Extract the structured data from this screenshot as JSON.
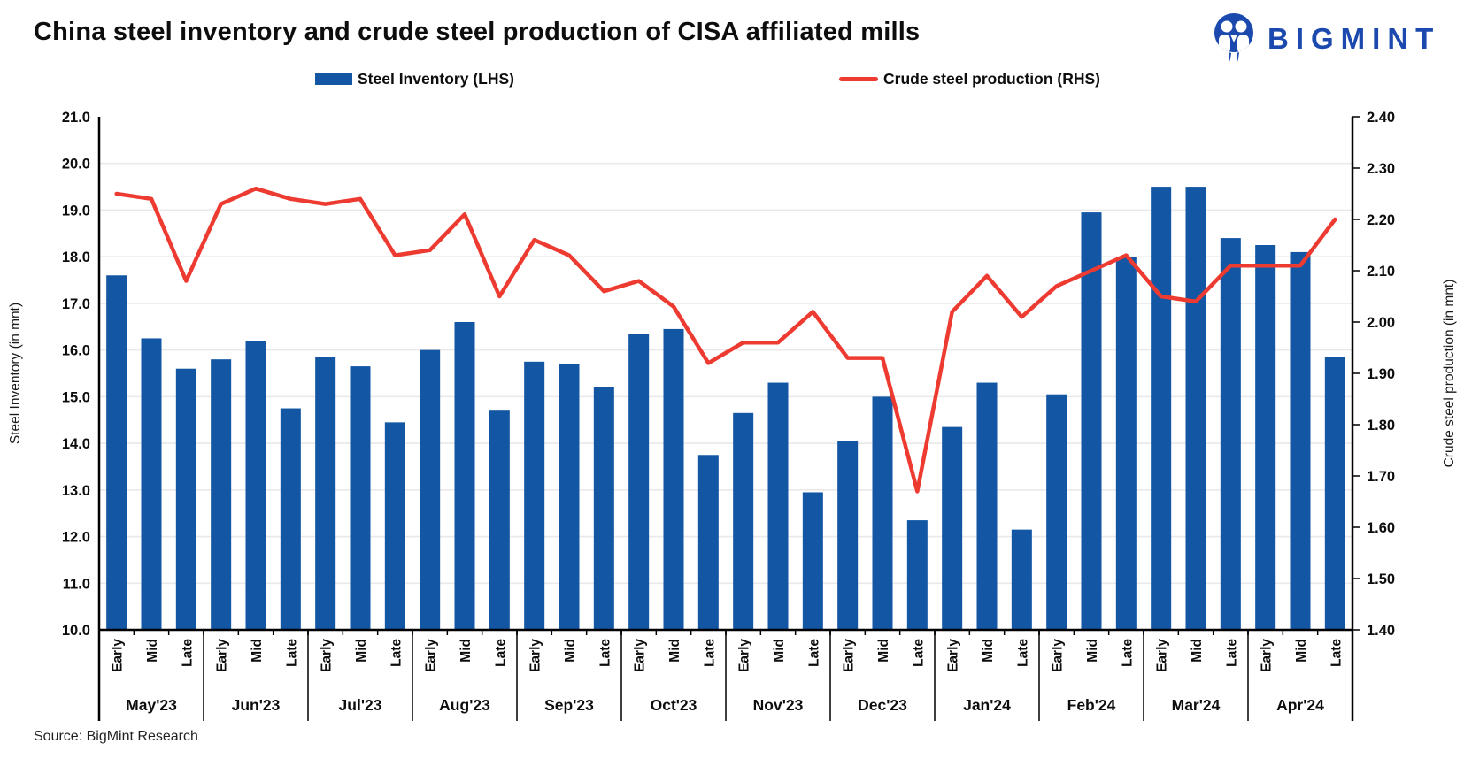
{
  "title": "China steel inventory and crude steel production of CISA affiliated mills",
  "logo": {
    "text": "BIGMINT",
    "color": "#1b49ae"
  },
  "legend": {
    "inventory_label": "Steel Inventory (LHS)",
    "production_label": "Crude steel production (RHS)"
  },
  "source": "Source: BigMint Research",
  "colors": {
    "bar": "#1256a4",
    "line": "#ee3b31",
    "grid": "#eae8e8",
    "axis": "#000000"
  },
  "chart_data": {
    "type": "bar+line",
    "title": "China steel inventory and crude steel production of CISA affiliated mills",
    "grid": true,
    "legend_position": "top",
    "categories_months": [
      "May'23",
      "Jun'23",
      "Jul'23",
      "Aug'23",
      "Sep'23",
      "Oct'23",
      "Nov'23",
      "Dec'23",
      "Jan'24",
      "Feb'24",
      "Mar'24",
      "Apr'24"
    ],
    "periods_per_month": [
      "Early",
      "Mid",
      "Late"
    ],
    "left_axis": {
      "label": "Steel Inventory (in mnt)",
      "min": 10.0,
      "max": 21.0,
      "step": 1.0,
      "tick_values": [
        21,
        20,
        19,
        18,
        17,
        16,
        15,
        14,
        13,
        12,
        11,
        10
      ],
      "tick_labels": [
        "21.0",
        "20.0",
        "19.0",
        "18.0",
        "17.0",
        "16.0",
        "15.0",
        "14.0",
        "13.0",
        "12.0",
        "11.0",
        "10.0"
      ]
    },
    "right_axis": {
      "label": "Crude steel production (in mnt)",
      "min": 1.4,
      "max": 2.4,
      "step": 0.1,
      "tick_values": [
        2.4,
        2.3,
        2.2,
        2.1,
        2.0,
        1.9,
        1.8,
        1.7,
        1.6,
        1.5,
        1.4
      ],
      "tick_labels": [
        "2.40",
        "2.30",
        "2.20",
        "2.10",
        "2.00",
        "1.90",
        "1.80",
        "1.70",
        "1.60",
        "1.50",
        "1.40"
      ]
    },
    "series": [
      {
        "name": "Steel Inventory (LHS)",
        "type": "bar",
        "axis": "left",
        "color": "#1256a4",
        "values": [
          17.6,
          16.25,
          15.6,
          15.8,
          16.2,
          14.75,
          15.85,
          15.65,
          14.45,
          16.0,
          16.6,
          14.7,
          15.75,
          15.7,
          15.2,
          16.35,
          16.45,
          13.75,
          14.65,
          15.3,
          12.95,
          14.05,
          15.0,
          12.35,
          14.35,
          15.3,
          12.15,
          15.05,
          18.95,
          18.0,
          19.5,
          19.5,
          18.4,
          18.25,
          18.1,
          15.85
        ]
      },
      {
        "name": "Crude steel production (RHS)",
        "type": "line",
        "axis": "right",
        "color": "#ee3b31",
        "values": [
          2.25,
          2.24,
          2.08,
          2.23,
          2.26,
          2.24,
          2.23,
          2.24,
          2.13,
          2.14,
          2.21,
          2.05,
          2.16,
          2.13,
          2.06,
          2.08,
          2.03,
          1.92,
          1.96,
          1.96,
          2.02,
          1.93,
          1.93,
          1.67,
          2.02,
          2.09,
          2.01,
          2.07,
          2.1,
          2.13,
          2.05,
          2.04,
          2.11,
          2.11,
          2.11,
          2.2
        ]
      }
    ]
  }
}
